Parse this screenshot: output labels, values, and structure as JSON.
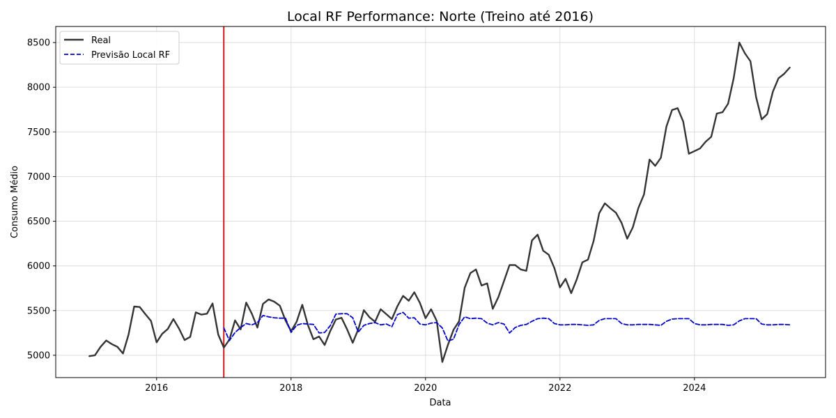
{
  "chart_data": {
    "type": "line",
    "title": "Local RF Performance: Norte (Treino até 2016)",
    "xlabel": "Data",
    "ylabel": "Consumo Médio",
    "xlim": [
      2014.5,
      2025.95
    ],
    "ylim": [
      4750,
      8680
    ],
    "x_ticks": [
      2016,
      2018,
      2020,
      2022,
      2024
    ],
    "x_tick_labels": [
      "2016",
      "2018",
      "2020",
      "2022",
      "2024"
    ],
    "y_ticks": [
      5000,
      5500,
      6000,
      6500,
      7000,
      7500,
      8000,
      8500
    ],
    "y_tick_labels": [
      "5000",
      "5500",
      "6000",
      "6500",
      "7000",
      "7500",
      "8000",
      "8500"
    ],
    "grid": true,
    "legend_position": "top-left",
    "split_line_x": 2017.0,
    "colors": {
      "real": "#333333",
      "forecast": "#0000cc",
      "split": "#cc0000",
      "grid": "#d9d9d9"
    },
    "series": [
      {
        "name": "Real",
        "style": "solid",
        "x": [
          2015.0,
          2015.083,
          2015.167,
          2015.25,
          2015.333,
          2015.417,
          2015.5,
          2015.583,
          2015.667,
          2015.75,
          2015.833,
          2015.917,
          2016.0,
          2016.083,
          2016.167,
          2016.25,
          2016.333,
          2016.417,
          2016.5,
          2016.583,
          2016.667,
          2016.75,
          2016.833,
          2016.917,
          2017.0,
          2017.083,
          2017.167,
          2017.25,
          2017.333,
          2017.417,
          2017.5,
          2017.583,
          2017.667,
          2017.75,
          2017.833,
          2017.917,
          2018.0,
          2018.083,
          2018.167,
          2018.25,
          2018.333,
          2018.417,
          2018.5,
          2018.583,
          2018.667,
          2018.75,
          2018.833,
          2018.917,
          2019.0,
          2019.083,
          2019.167,
          2019.25,
          2019.333,
          2019.417,
          2019.5,
          2019.583,
          2019.667,
          2019.75,
          2019.833,
          2019.917,
          2020.0,
          2020.083,
          2020.167,
          2020.25,
          2020.333,
          2020.417,
          2020.5,
          2020.583,
          2020.667,
          2020.75,
          2020.833,
          2020.917,
          2021.0,
          2021.083,
          2021.167,
          2021.25,
          2021.333,
          2021.417,
          2021.5,
          2021.583,
          2021.667,
          2021.75,
          2021.833,
          2021.917,
          2022.0,
          2022.083,
          2022.167,
          2022.25,
          2022.333,
          2022.417,
          2022.5,
          2022.583,
          2022.667,
          2022.75,
          2022.833,
          2022.917,
          2023.0,
          2023.083,
          2023.167,
          2023.25,
          2023.333,
          2023.417,
          2023.5,
          2023.583,
          2023.667,
          2023.75,
          2023.833,
          2023.917,
          2024.0,
          2024.083,
          2024.167,
          2024.25,
          2024.333,
          2024.417,
          2024.5,
          2024.583,
          2024.667,
          2024.75,
          2024.833,
          2024.917,
          2025.0,
          2025.083,
          2025.167,
          2025.25,
          2025.333,
          2025.417
        ],
        "y": [
          4990,
          5000,
          5095,
          5165,
          5125,
          5095,
          5020,
          5230,
          5545,
          5540,
          5460,
          5385,
          5145,
          5240,
          5295,
          5405,
          5300,
          5170,
          5205,
          5480,
          5455,
          5465,
          5580,
          5230,
          5085,
          5175,
          5390,
          5290,
          5590,
          5465,
          5310,
          5575,
          5625,
          5600,
          5555,
          5390,
          5270,
          5375,
          5565,
          5340,
          5180,
          5210,
          5115,
          5270,
          5400,
          5420,
          5290,
          5140,
          5290,
          5505,
          5425,
          5375,
          5515,
          5460,
          5405,
          5550,
          5665,
          5610,
          5705,
          5585,
          5415,
          5515,
          5385,
          4925,
          5115,
          5285,
          5380,
          5755,
          5920,
          5960,
          5780,
          5805,
          5520,
          5650,
          5830,
          6010,
          6010,
          5960,
          5945,
          6285,
          6350,
          6170,
          6125,
          5975,
          5760,
          5855,
          5695,
          5850,
          6040,
          6070,
          6280,
          6590,
          6700,
          6645,
          6595,
          6480,
          6305,
          6430,
          6650,
          6800,
          7190,
          7120,
          7210,
          7560,
          7745,
          7765,
          7615,
          7255,
          7285,
          7315,
          7390,
          7445,
          7705,
          7720,
          7815,
          8100,
          8500,
          8380,
          8290,
          7890,
          7640,
          7700,
          7950,
          8100,
          8150,
          8220
        ]
      },
      {
        "name": "Previsão Local RF",
        "style": "dashed",
        "x": [
          2017.0,
          2017.083,
          2017.167,
          2017.25,
          2017.333,
          2017.417,
          2017.5,
          2017.583,
          2017.667,
          2017.75,
          2017.833,
          2017.917,
          2018.0,
          2018.083,
          2018.167,
          2018.25,
          2018.333,
          2018.417,
          2018.5,
          2018.583,
          2018.667,
          2018.75,
          2018.833,
          2018.917,
          2019.0,
          2019.083,
          2019.167,
          2019.25,
          2019.333,
          2019.417,
          2019.5,
          2019.583,
          2019.667,
          2019.75,
          2019.833,
          2019.917,
          2020.0,
          2020.083,
          2020.167,
          2020.25,
          2020.333,
          2020.417,
          2020.5,
          2020.583,
          2020.667,
          2020.75,
          2020.833,
          2020.917,
          2021.0,
          2021.083,
          2021.167,
          2021.25,
          2021.333,
          2021.417,
          2021.5,
          2021.583,
          2021.667,
          2021.75,
          2021.833,
          2021.917,
          2022.0,
          2022.083,
          2022.167,
          2022.25,
          2022.333,
          2022.417,
          2022.5,
          2022.583,
          2022.667,
          2022.75,
          2022.833,
          2022.917,
          2023.0,
          2023.083,
          2023.167,
          2023.25,
          2023.333,
          2023.417,
          2023.5,
          2023.583,
          2023.667,
          2023.75,
          2023.833,
          2023.917,
          2024.0,
          2024.083,
          2024.167,
          2024.25,
          2024.333,
          2024.417,
          2024.5,
          2024.583,
          2024.667,
          2024.75,
          2024.833,
          2024.917,
          2025.0,
          2025.083,
          2025.167,
          2025.25,
          2025.333,
          2025.417
        ],
        "y": [
          5305,
          5165,
          5255,
          5310,
          5355,
          5340,
          5365,
          5445,
          5430,
          5420,
          5415,
          5415,
          5255,
          5335,
          5355,
          5350,
          5345,
          5250,
          5255,
          5330,
          5460,
          5465,
          5465,
          5420,
          5260,
          5335,
          5355,
          5365,
          5340,
          5350,
          5320,
          5455,
          5480,
          5415,
          5420,
          5350,
          5340,
          5360,
          5365,
          5305,
          5160,
          5180,
          5345,
          5430,
          5410,
          5415,
          5410,
          5360,
          5340,
          5365,
          5350,
          5250,
          5310,
          5335,
          5345,
          5380,
          5410,
          5415,
          5410,
          5355,
          5340,
          5340,
          5345,
          5345,
          5340,
          5335,
          5340,
          5390,
          5410,
          5410,
          5410,
          5355,
          5340,
          5340,
          5345,
          5345,
          5345,
          5340,
          5335,
          5380,
          5405,
          5410,
          5410,
          5410,
          5355,
          5340,
          5340,
          5345,
          5345,
          5345,
          5335,
          5340,
          5385,
          5410,
          5410,
          5410,
          5350,
          5340,
          5340,
          5345,
          5345,
          5340
        ]
      }
    ]
  }
}
